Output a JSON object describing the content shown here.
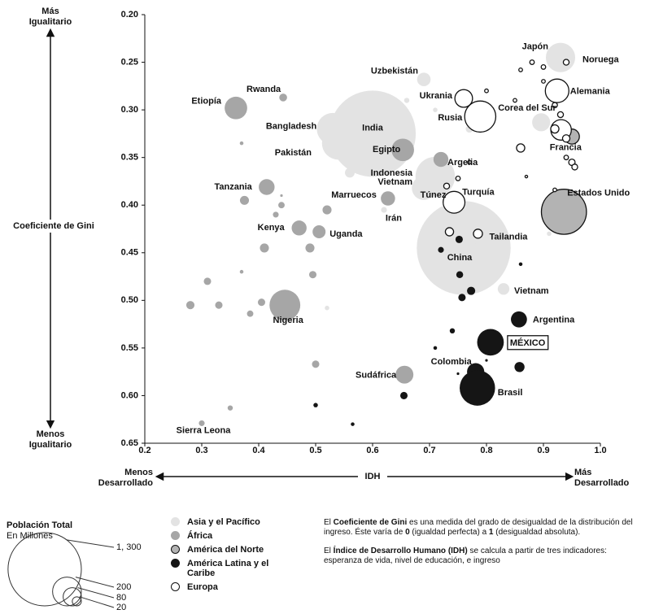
{
  "chart_data": {
    "type": "bubble",
    "y_axis_label": "Coeficiente de Gini",
    "y_top_label": [
      "Más",
      "Igualitario"
    ],
    "y_bottom_label": [
      "Menos",
      "Igualitario"
    ],
    "x_axis_label": "IDH",
    "x_left_label": [
      "Menos",
      "Desarrollado"
    ],
    "x_right_label": [
      "Más",
      "Desarrollado"
    ],
    "xlim": [
      0.2,
      1.0
    ],
    "xticks": [
      0.2,
      0.3,
      0.4,
      0.5,
      0.6,
      0.7,
      0.8,
      0.9,
      {
        "value": 1.0,
        "label": "1.0"
      }
    ],
    "ylim": [
      0.65,
      0.2
    ],
    "yticks": [
      {
        "value": 0.2,
        "label": "0.20"
      },
      0.25,
      {
        "value": 0.3,
        "label": "0.30"
      },
      0.35,
      {
        "value": 0.4,
        "label": "0.40"
      },
      0.45,
      {
        "value": 0.5,
        "label": "0.50"
      },
      0.55,
      {
        "value": 0.6,
        "label": "0.60"
      },
      0.65
    ],
    "series": [
      {
        "name": "Asia y el Pacífico",
        "color": "#e3e3e3",
        "stroke": "none",
        "x": [
          0.93,
          0.6,
          0.76,
          0.53,
          0.54,
          0.71,
          0.69,
          0.69,
          0.72,
          0.785,
          0.896,
          0.83,
          0.56,
          0.62,
          0.77,
          0.71,
          0.91,
          0.66,
          0.52
        ],
        "values": [
          0.245,
          0.325,
          0.445,
          0.32,
          0.335,
          0.37,
          0.382,
          0.268,
          0.425,
          0.43,
          0.313,
          0.488,
          0.366,
          0.405,
          0.32,
          0.3,
          0.43,
          0.29,
          0.508
        ],
        "sizes": [
          127,
          1100,
          1300,
          150,
          160,
          230,
          85,
          27,
          70,
          65,
          48,
          20,
          14,
          5,
          8,
          3,
          3,
          4,
          3
        ],
        "labels": [
          "Japón",
          "India",
          "China",
          "Bangladesh",
          "Pakistán",
          "Indonesia",
          "Vietnam",
          "Uzbekistán",
          "Irán",
          "Tailandia",
          "Corea del Sur",
          "Vietnam",
          null,
          null,
          null,
          null,
          null,
          null,
          null
        ]
      },
      {
        "name": "África",
        "color": "#a6a6a6",
        "stroke": "none",
        "x": [
          0.36,
          0.443,
          0.414,
          0.471,
          0.506,
          0.446,
          0.656,
          0.3,
          0.653,
          0.72,
          0.627,
          0.752,
          0.375,
          0.41,
          0.49,
          0.495,
          0.31,
          0.33,
          0.28,
          0.405,
          0.37,
          0.43,
          0.44,
          0.52,
          0.5,
          0.385,
          0.35,
          0.37,
          0.44
        ],
        "values": [
          0.298,
          0.287,
          0.381,
          0.424,
          0.428,
          0.505,
          0.578,
          0.629,
          0.342,
          0.352,
          0.393,
          0.398,
          0.395,
          0.445,
          0.445,
          0.473,
          0.48,
          0.505,
          0.505,
          0.502,
          0.47,
          0.41,
          0.4,
          0.405,
          0.567,
          0.514,
          0.613,
          0.335,
          0.39
        ],
        "sizes": [
          75,
          9,
          37,
          33,
          25,
          140,
          47,
          5,
          75,
          33,
          30,
          10,
          12,
          12,
          12,
          8,
          8,
          8,
          10,
          8,
          2,
          5,
          6,
          12,
          8,
          6,
          4,
          2,
          1
        ],
        "labels": [
          "Etiopía",
          "Rwanda",
          "Tanzania",
          "Kenya",
          "Uganda",
          "Nigeria",
          "Sudáfrica",
          "Sierra Leona",
          "Egipto",
          "Argelia",
          "Marruecos",
          "Túnez",
          null,
          null,
          null,
          null,
          null,
          null,
          null,
          null,
          null,
          null,
          null,
          null,
          null,
          null,
          null,
          null,
          null
        ]
      },
      {
        "name": "América del Norte",
        "color": "#b3b3b3",
        "stroke": "#111111",
        "x": [
          0.936,
          0.95
        ],
        "values": [
          0.407,
          0.328
        ],
        "sizes": [
          300,
          33
        ],
        "labels": [
          "Estados Unido",
          null
        ]
      },
      {
        "name": "América Latina y el Caribe",
        "color": "#151515",
        "stroke": "none",
        "x": [
          0.857,
          0.807,
          0.781,
          0.784,
          0.858,
          0.773,
          0.757,
          0.753,
          0.72,
          0.86,
          0.752,
          0.655,
          0.5,
          0.565,
          0.71,
          0.74,
          0.8,
          0.75
        ],
        "values": [
          0.52,
          0.544,
          0.575,
          0.592,
          0.57,
          0.49,
          0.497,
          0.473,
          0.447,
          0.462,
          0.436,
          0.6,
          0.61,
          0.63,
          0.55,
          0.532,
          0.563,
          0.577
        ],
        "sizes": [
          38,
          105,
          44,
          185,
          15,
          10,
          8,
          7,
          5,
          2,
          8,
          8,
          3,
          2,
          2,
          4,
          1,
          1
        ],
        "labels": [
          "Argentina",
          "MÉXICO",
          "Colombia",
          "Brasil",
          null,
          null,
          null,
          null,
          null,
          null,
          null,
          null,
          null,
          null,
          null,
          null,
          null,
          null
        ]
      },
      {
        "name": "Europa",
        "color": "#ffffff",
        "stroke": "#111111",
        "x": [
          0.789,
          0.76,
          0.924,
          0.931,
          0.743,
          0.94,
          0.88,
          0.9,
          0.86,
          0.9,
          0.85,
          0.92,
          0.93,
          0.92,
          0.94,
          0.86,
          0.95,
          0.955,
          0.94,
          0.75,
          0.73,
          0.77,
          0.8,
          0.87,
          0.92,
          0.735,
          0.785
        ],
        "values": [
          0.307,
          0.288,
          0.28,
          0.321,
          0.397,
          0.25,
          0.25,
          0.255,
          0.258,
          0.27,
          0.29,
          0.295,
          0.305,
          0.32,
          0.33,
          0.34,
          0.355,
          0.36,
          0.35,
          0.372,
          0.38,
          0.355,
          0.28,
          0.37,
          0.384,
          0.428,
          0.43
        ],
        "sizes": [
          143,
          46,
          82,
          62,
          70,
          5,
          3,
          3,
          2,
          2,
          2,
          4,
          5,
          10,
          8,
          10,
          6,
          5,
          3,
          3,
          5,
          2,
          2,
          1,
          2,
          10,
          12
        ],
        "labels": [
          "Rusia",
          "Ukrania",
          "Alemania",
          "Francia",
          "Turquía",
          "Noruega",
          null,
          null,
          null,
          null,
          null,
          null,
          null,
          null,
          null,
          null,
          null,
          null,
          null,
          null,
          null,
          null,
          null,
          null,
          null,
          null,
          null
        ]
      }
    ],
    "size_legend": {
      "title": "Población Total",
      "subtitle": "En Millones",
      "values": [
        1300,
        200,
        80,
        20
      ],
      "value_labels": [
        "1, 300",
        "200",
        "80",
        "20"
      ]
    },
    "notes": [
      [
        {
          "text": "El "
        },
        {
          "text": "Coeficiente de Gini",
          "bold": true
        },
        {
          "text": " es una medida del grado de desigualdad de la distribución del ingreso. Éste varía de "
        },
        {
          "text": "0",
          "bold": true
        },
        {
          "text": " (igualdad perfecta) a "
        },
        {
          "text": "1",
          "bold": true
        },
        {
          "text": " (desigualdad absoluta)."
        }
      ],
      [
        {
          "text": "El "
        },
        {
          "text": "Índice de Desarrollo Humano (IDH)",
          "bold": true
        },
        {
          "text": " se calcula a partir de tres indicadores: esperanza de vida, nivel de educación, e ingreso"
        }
      ]
    ]
  }
}
